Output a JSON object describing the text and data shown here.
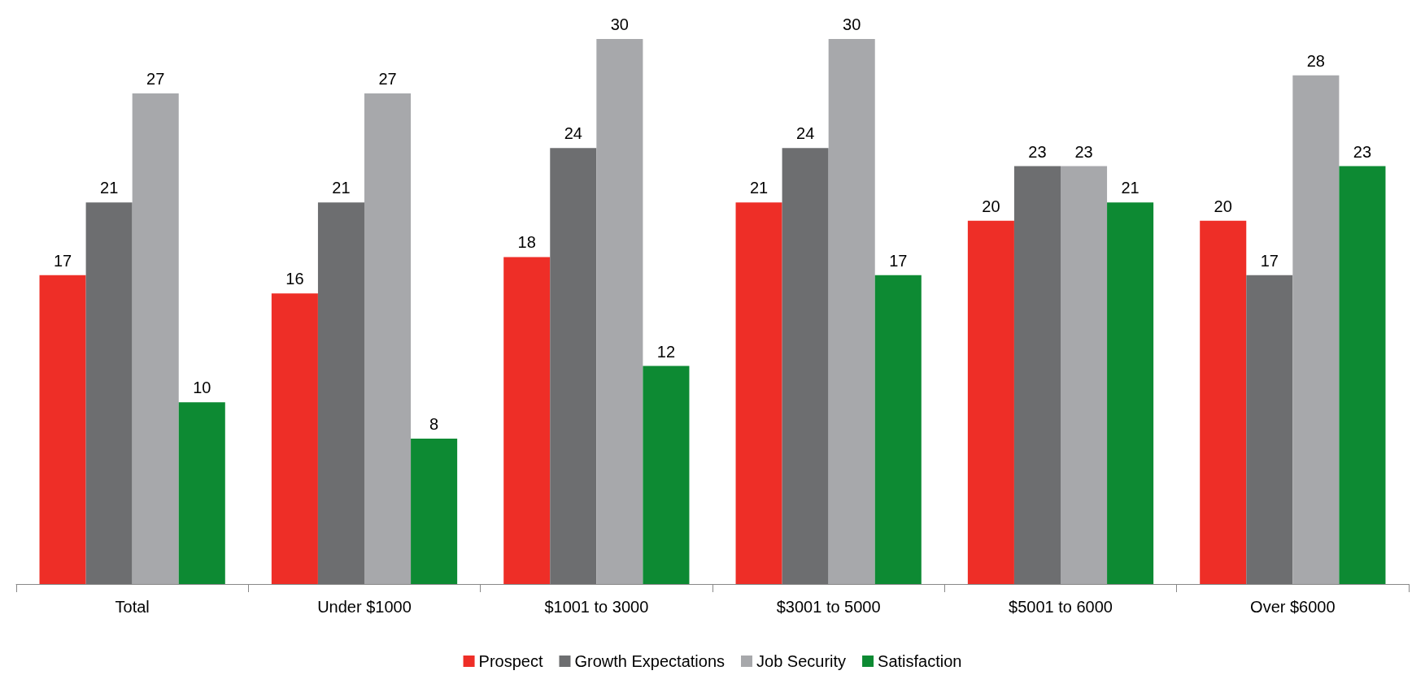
{
  "chart_data": {
    "type": "bar",
    "categories": [
      "Total",
      "Under $1000",
      "$1001 to 3000",
      "$3001 to 5000",
      "$5001 to 6000",
      "Over $6000"
    ],
    "series": [
      {
        "name": "Prospect",
        "color": "#ee2e27",
        "values": [
          17,
          16,
          18,
          21,
          20,
          20
        ]
      },
      {
        "name": "Growth Expectations",
        "color": "#6d6e70",
        "values": [
          21,
          21,
          24,
          24,
          23,
          17
        ]
      },
      {
        "name": "Job Security",
        "color": "#a7a8ab",
        "values": [
          27,
          27,
          30,
          30,
          23,
          28
        ]
      },
      {
        "name": "Satisfaction",
        "color": "#0d8a33",
        "values": [
          10,
          8,
          12,
          17,
          21,
          23
        ]
      }
    ],
    "data_labels": true,
    "legend": "bottom"
  }
}
